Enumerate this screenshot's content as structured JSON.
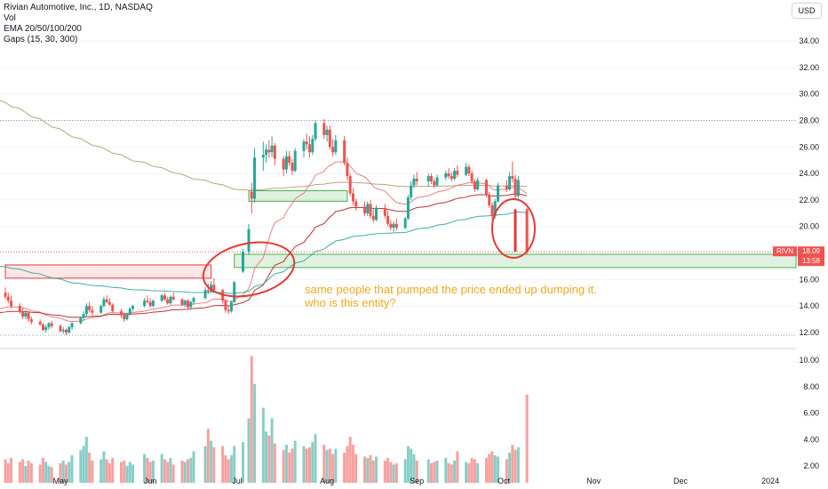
{
  "header": {
    "title": "Rivian Automotive, Inc., 1D, NASDAQ",
    "indicators": [
      "Vol",
      "EMA 20/50/100/200",
      "Gaps (15, 30, 300)"
    ],
    "currency": "USD"
  },
  "annotation": {
    "text": "same people that pumped the price ended up dumping it. who is this entity?",
    "color": "#f2a81d"
  },
  "price_tag": {
    "symbol": "RIVN",
    "last_price": "18.09",
    "countdown": "13:58",
    "color": "#f23645"
  },
  "colors": {
    "up": "#26a69a",
    "down": "#ef5350",
    "ema20": "#e57373",
    "ema50": "#b71c1c",
    "ema100": "#26a69a",
    "ema200": "#b09a6a",
    "gap_up": "#4caf50",
    "gap_down": "#e53935",
    "circle": "#e53935"
  },
  "chart_data": {
    "type": "candlestick",
    "title": "Rivian Automotive, Inc., 1D, NASDAQ",
    "price_axis": {
      "ticks": [
        "34.00",
        "32.00",
        "30.00",
        "28.00",
        "26.00",
        "24.00",
        "22.00",
        "20.00",
        "16.00",
        "14.00",
        "12.00"
      ],
      "range": [
        11.5,
        35.5
      ]
    },
    "volume_axis": {
      "ticks": [
        "10.00",
        "8.00",
        "6.00",
        "4.00",
        "2.00"
      ],
      "unit": "M",
      "range": [
        0,
        11
      ]
    },
    "time_axis": {
      "ticks": [
        "May",
        "Jun",
        "Jul",
        "Aug",
        "Sep",
        "Oct",
        "Nov",
        "Dec",
        "2024"
      ],
      "ticks_date": [
        "2023-05-01",
        "2023-06-01",
        "2023-07-01",
        "2023-08-01",
        "2023-09-01",
        "2023-10-01",
        "2023-11-01",
        "2023-12-01",
        "2024-01-01"
      ]
    },
    "candles": [
      {
        "date": "2023-04-12",
        "o": 15.0,
        "h": 15.4,
        "l": 14.5,
        "c": 14.7,
        "v": 2.5
      },
      {
        "date": "2023-04-13",
        "o": 14.7,
        "h": 15.0,
        "l": 14.2,
        "c": 14.4,
        "v": 2.2
      },
      {
        "date": "2023-04-14",
        "o": 14.4,
        "h": 14.8,
        "l": 13.8,
        "c": 14.0,
        "v": 2.6
      },
      {
        "date": "2023-04-17",
        "o": 14.0,
        "h": 14.2,
        "l": 13.4,
        "c": 13.6,
        "v": 2.3
      },
      {
        "date": "2023-04-18",
        "o": 13.6,
        "h": 13.9,
        "l": 13.0,
        "c": 13.2,
        "v": 2.5
      },
      {
        "date": "2023-04-19",
        "o": 13.2,
        "h": 13.7,
        "l": 13.0,
        "c": 13.5,
        "v": 2.0
      },
      {
        "date": "2023-04-20",
        "o": 13.5,
        "h": 13.6,
        "l": 12.8,
        "c": 13.0,
        "v": 2.4
      },
      {
        "date": "2023-04-21",
        "o": 13.0,
        "h": 13.2,
        "l": 12.6,
        "c": 12.8,
        "v": 2.2
      },
      {
        "date": "2023-04-24",
        "o": 12.8,
        "h": 13.0,
        "l": 12.5,
        "c": 12.6,
        "v": 2.1
      },
      {
        "date": "2023-04-25",
        "o": 12.6,
        "h": 12.7,
        "l": 12.1,
        "c": 12.2,
        "v": 2.6
      },
      {
        "date": "2023-04-26",
        "o": 12.2,
        "h": 12.6,
        "l": 12.0,
        "c": 12.4,
        "v": 2.3
      },
      {
        "date": "2023-04-27",
        "o": 12.4,
        "h": 12.8,
        "l": 12.2,
        "c": 12.7,
        "v": 2.0
      },
      {
        "date": "2023-04-28",
        "o": 12.7,
        "h": 12.9,
        "l": 12.3,
        "c": 12.5,
        "v": 1.9
      },
      {
        "date": "2023-05-01",
        "o": 12.5,
        "h": 12.6,
        "l": 12.0,
        "c": 12.1,
        "v": 2.2
      },
      {
        "date": "2023-05-02",
        "o": 12.1,
        "h": 12.4,
        "l": 11.9,
        "c": 12.2,
        "v": 2.4
      },
      {
        "date": "2023-05-03",
        "o": 12.2,
        "h": 12.3,
        "l": 11.8,
        "c": 12.0,
        "v": 2.1
      },
      {
        "date": "2023-05-04",
        "o": 12.0,
        "h": 12.5,
        "l": 11.9,
        "c": 12.4,
        "v": 2.3
      },
      {
        "date": "2023-05-05",
        "o": 12.4,
        "h": 12.8,
        "l": 12.2,
        "c": 12.7,
        "v": 2.8
      },
      {
        "date": "2023-05-08",
        "o": 12.7,
        "h": 13.2,
        "l": 12.6,
        "c": 13.1,
        "v": 3.2
      },
      {
        "date": "2023-05-09",
        "o": 13.1,
        "h": 13.6,
        "l": 12.9,
        "c": 13.4,
        "v": 3.5
      },
      {
        "date": "2023-05-10",
        "o": 13.4,
        "h": 14.2,
        "l": 13.2,
        "c": 14.0,
        "v": 4.2
      },
      {
        "date": "2023-05-11",
        "o": 14.0,
        "h": 14.3,
        "l": 13.5,
        "c": 13.7,
        "v": 3.0
      },
      {
        "date": "2023-05-12",
        "o": 13.7,
        "h": 14.0,
        "l": 13.3,
        "c": 13.5,
        "v": 2.4
      },
      {
        "date": "2023-05-15",
        "o": 13.5,
        "h": 14.1,
        "l": 13.4,
        "c": 14.0,
        "v": 2.5
      },
      {
        "date": "2023-05-16",
        "o": 14.0,
        "h": 14.7,
        "l": 13.9,
        "c": 14.5,
        "v": 3.1
      },
      {
        "date": "2023-05-17",
        "o": 14.5,
        "h": 14.8,
        "l": 14.2,
        "c": 14.3,
        "v": 2.5
      },
      {
        "date": "2023-05-18",
        "o": 14.3,
        "h": 14.6,
        "l": 14.0,
        "c": 14.1,
        "v": 2.2
      },
      {
        "date": "2023-05-19",
        "o": 14.1,
        "h": 14.2,
        "l": 13.5,
        "c": 13.6,
        "v": 2.6
      },
      {
        "date": "2023-05-22",
        "o": 13.6,
        "h": 13.8,
        "l": 13.1,
        "c": 13.3,
        "v": 2.3
      },
      {
        "date": "2023-05-23",
        "o": 13.3,
        "h": 13.5,
        "l": 12.8,
        "c": 13.0,
        "v": 2.4
      },
      {
        "date": "2023-05-24",
        "o": 13.0,
        "h": 13.5,
        "l": 12.9,
        "c": 13.4,
        "v": 2.0
      },
      {
        "date": "2023-05-25",
        "o": 13.4,
        "h": 13.9,
        "l": 13.3,
        "c": 13.8,
        "v": 2.3
      },
      {
        "date": "2023-05-26",
        "o": 13.8,
        "h": 14.1,
        "l": 13.6,
        "c": 14.0,
        "v": 2.1
      },
      {
        "date": "2023-05-30",
        "o": 14.0,
        "h": 14.6,
        "l": 13.9,
        "c": 14.4,
        "v": 2.9
      },
      {
        "date": "2023-05-31",
        "o": 14.4,
        "h": 14.8,
        "l": 14.2,
        "c": 14.3,
        "v": 2.6
      },
      {
        "date": "2023-06-01",
        "o": 14.3,
        "h": 14.6,
        "l": 13.9,
        "c": 14.0,
        "v": 2.3
      },
      {
        "date": "2023-06-02",
        "o": 14.0,
        "h": 14.5,
        "l": 13.9,
        "c": 14.4,
        "v": 2.4
      },
      {
        "date": "2023-06-05",
        "o": 14.4,
        "h": 14.9,
        "l": 14.3,
        "c": 14.8,
        "v": 2.9
      },
      {
        "date": "2023-06-06",
        "o": 14.8,
        "h": 15.0,
        "l": 14.4,
        "c": 14.5,
        "v": 2.5
      },
      {
        "date": "2023-06-07",
        "o": 14.5,
        "h": 14.7,
        "l": 14.1,
        "c": 14.2,
        "v": 2.3
      },
      {
        "date": "2023-06-08",
        "o": 14.2,
        "h": 14.8,
        "l": 14.1,
        "c": 14.7,
        "v": 2.6
      },
      {
        "date": "2023-06-09",
        "o": 14.7,
        "h": 15.0,
        "l": 14.4,
        "c": 14.5,
        "v": 2.1
      },
      {
        "date": "2023-06-12",
        "o": 14.5,
        "h": 14.6,
        "l": 14.0,
        "c": 14.1,
        "v": 2.4
      },
      {
        "date": "2023-06-13",
        "o": 14.1,
        "h": 14.5,
        "l": 13.9,
        "c": 14.4,
        "v": 2.3
      },
      {
        "date": "2023-06-14",
        "o": 14.4,
        "h": 14.5,
        "l": 13.8,
        "c": 13.9,
        "v": 2.5
      },
      {
        "date": "2023-06-15",
        "o": 13.9,
        "h": 14.4,
        "l": 13.8,
        "c": 14.3,
        "v": 2.6
      },
      {
        "date": "2023-06-16",
        "o": 14.3,
        "h": 14.7,
        "l": 14.1,
        "c": 14.6,
        "v": 3.1
      },
      {
        "date": "2023-06-20",
        "o": 14.6,
        "h": 15.4,
        "l": 14.5,
        "c": 15.2,
        "v": 3.5
      },
      {
        "date": "2023-06-21",
        "o": 15.2,
        "h": 15.7,
        "l": 14.9,
        "c": 15.1,
        "v": 4.8
      },
      {
        "date": "2023-06-22",
        "o": 15.1,
        "h": 15.9,
        "l": 15.0,
        "c": 15.6,
        "v": 3.9
      },
      {
        "date": "2023-06-23",
        "o": 15.6,
        "h": 16.1,
        "l": 15.0,
        "c": 15.2,
        "v": 3.4
      },
      {
        "date": "2023-06-26",
        "o": 15.2,
        "h": 15.3,
        "l": 14.2,
        "c": 14.4,
        "v": 3.5
      },
      {
        "date": "2023-06-27",
        "o": 14.4,
        "h": 14.5,
        "l": 13.5,
        "c": 13.7,
        "v": 2.8
      },
      {
        "date": "2023-06-28",
        "o": 13.7,
        "h": 14.0,
        "l": 13.4,
        "c": 13.6,
        "v": 2.5
      },
      {
        "date": "2023-06-29",
        "o": 13.6,
        "h": 14.4,
        "l": 13.5,
        "c": 14.3,
        "v": 2.8
      },
      {
        "date": "2023-06-30",
        "o": 14.3,
        "h": 15.9,
        "l": 14.2,
        "c": 15.8,
        "v": 3.5
      },
      {
        "date": "2023-07-03",
        "o": 16.6,
        "h": 18.3,
        "l": 16.5,
        "c": 18.1,
        "v": 3.8
      },
      {
        "date": "2023-07-05",
        "o": 18.1,
        "h": 20.2,
        "l": 17.9,
        "c": 19.8,
        "v": 5.6
      },
      {
        "date": "2023-07-06",
        "o": 22.6,
        "h": 23.3,
        "l": 21.0,
        "c": 22.1,
        "v": 10.3
      },
      {
        "date": "2023-07-07",
        "o": 22.1,
        "h": 25.9,
        "l": 21.8,
        "c": 25.2,
        "v": 8.2
      },
      {
        "date": "2023-07-10",
        "o": 25.2,
        "h": 26.4,
        "l": 24.2,
        "c": 25.4,
        "v": 6.4
      },
      {
        "date": "2023-07-11",
        "o": 25.4,
        "h": 26.2,
        "l": 24.8,
        "c": 25.8,
        "v": 4.6
      },
      {
        "date": "2023-07-12",
        "o": 25.8,
        "h": 26.5,
        "l": 25.2,
        "c": 25.6,
        "v": 4.3
      },
      {
        "date": "2023-07-13",
        "o": 25.6,
        "h": 26.8,
        "l": 25.2,
        "c": 26.1,
        "v": 5.6
      },
      {
        "date": "2023-07-14",
        "o": 26.1,
        "h": 26.3,
        "l": 24.6,
        "c": 25.1,
        "v": 3.7
      },
      {
        "date": "2023-07-17",
        "o": 25.1,
        "h": 25.3,
        "l": 23.8,
        "c": 24.3,
        "v": 3.2
      },
      {
        "date": "2023-07-18",
        "o": 24.3,
        "h": 25.7,
        "l": 24.0,
        "c": 25.3,
        "v": 3.6
      },
      {
        "date": "2023-07-19",
        "o": 25.3,
        "h": 25.7,
        "l": 24.6,
        "c": 24.8,
        "v": 3.0
      },
      {
        "date": "2023-07-20",
        "o": 24.8,
        "h": 25.1,
        "l": 23.9,
        "c": 24.2,
        "v": 3.3
      },
      {
        "date": "2023-07-21",
        "o": 24.2,
        "h": 25.9,
        "l": 24.1,
        "c": 25.7,
        "v": 3.9
      },
      {
        "date": "2023-07-24",
        "o": 25.7,
        "h": 26.6,
        "l": 25.2,
        "c": 26.4,
        "v": 3.5
      },
      {
        "date": "2023-07-25",
        "o": 26.4,
        "h": 27.0,
        "l": 25.8,
        "c": 26.2,
        "v": 3.3
      },
      {
        "date": "2023-07-26",
        "o": 26.2,
        "h": 26.8,
        "l": 25.2,
        "c": 25.6,
        "v": 3.4
      },
      {
        "date": "2023-07-27",
        "o": 25.6,
        "h": 26.9,
        "l": 25.4,
        "c": 26.6,
        "v": 3.8
      },
      {
        "date": "2023-07-28",
        "o": 26.6,
        "h": 28.0,
        "l": 26.4,
        "c": 27.8,
        "v": 4.4
      },
      {
        "date": "2023-07-31",
        "o": 27.8,
        "h": 28.1,
        "l": 26.6,
        "c": 26.9,
        "v": 3.6
      },
      {
        "date": "2023-08-01",
        "o": 26.9,
        "h": 27.6,
        "l": 26.4,
        "c": 27.3,
        "v": 3.2
      },
      {
        "date": "2023-08-02",
        "o": 27.3,
        "h": 27.6,
        "l": 25.8,
        "c": 26.0,
        "v": 3.3
      },
      {
        "date": "2023-08-03",
        "o": 26.0,
        "h": 26.6,
        "l": 25.3,
        "c": 25.6,
        "v": 2.9
      },
      {
        "date": "2023-08-04",
        "o": 25.6,
        "h": 26.9,
        "l": 25.4,
        "c": 26.5,
        "v": 3.3
      },
      {
        "date": "2023-08-07",
        "o": 26.5,
        "h": 26.8,
        "l": 24.6,
        "c": 24.8,
        "v": 3.0
      },
      {
        "date": "2023-08-08",
        "o": 24.8,
        "h": 25.2,
        "l": 23.5,
        "c": 23.8,
        "v": 3.5
      },
      {
        "date": "2023-08-09",
        "o": 23.8,
        "h": 24.0,
        "l": 22.3,
        "c": 22.5,
        "v": 4.2
      },
      {
        "date": "2023-08-10",
        "o": 22.5,
        "h": 22.9,
        "l": 21.6,
        "c": 21.9,
        "v": 3.6
      },
      {
        "date": "2023-08-11",
        "o": 21.9,
        "h": 22.1,
        "l": 21.2,
        "c": 21.5,
        "v": 2.9
      },
      {
        "date": "2023-08-14",
        "o": 21.5,
        "h": 21.9,
        "l": 20.8,
        "c": 21.0,
        "v": 2.7
      },
      {
        "date": "2023-08-15",
        "o": 21.0,
        "h": 21.9,
        "l": 20.8,
        "c": 21.7,
        "v": 2.6
      },
      {
        "date": "2023-08-16",
        "o": 21.7,
        "h": 22.0,
        "l": 20.6,
        "c": 20.8,
        "v": 2.8
      },
      {
        "date": "2023-08-17",
        "o": 20.8,
        "h": 21.3,
        "l": 20.3,
        "c": 20.5,
        "v": 2.4
      },
      {
        "date": "2023-08-18",
        "o": 20.5,
        "h": 21.6,
        "l": 20.4,
        "c": 21.4,
        "v": 2.7
      },
      {
        "date": "2023-08-21",
        "o": 21.4,
        "h": 21.7,
        "l": 20.6,
        "c": 20.8,
        "v": 2.4
      },
      {
        "date": "2023-08-22",
        "o": 20.8,
        "h": 21.2,
        "l": 20.0,
        "c": 20.2,
        "v": 2.6
      },
      {
        "date": "2023-08-23",
        "o": 20.2,
        "h": 20.5,
        "l": 19.7,
        "c": 19.9,
        "v": 2.3
      },
      {
        "date": "2023-08-24",
        "o": 19.9,
        "h": 20.4,
        "l": 19.6,
        "c": 20.2,
        "v": 2.1
      },
      {
        "date": "2023-08-25",
        "o": 20.2,
        "h": 20.6,
        "l": 19.7,
        "c": 19.9,
        "v": 2.2
      },
      {
        "date": "2023-08-28",
        "o": 19.9,
        "h": 20.7,
        "l": 19.8,
        "c": 20.6,
        "v": 2.5
      },
      {
        "date": "2023-08-29",
        "o": 20.6,
        "h": 22.4,
        "l": 20.5,
        "c": 22.2,
        "v": 3.5
      },
      {
        "date": "2023-08-30",
        "o": 22.2,
        "h": 23.4,
        "l": 22.0,
        "c": 23.1,
        "v": 3.3
      },
      {
        "date": "2023-08-31",
        "o": 23.1,
        "h": 23.9,
        "l": 22.9,
        "c": 23.6,
        "v": 2.9
      },
      {
        "date": "2023-09-01",
        "o": 23.6,
        "h": 24.1,
        "l": 23.1,
        "c": 23.4,
        "v": 2.4
      },
      {
        "date": "2023-09-05",
        "o": 23.4,
        "h": 24.0,
        "l": 23.0,
        "c": 23.8,
        "v": 2.5
      },
      {
        "date": "2023-09-06",
        "o": 23.8,
        "h": 24.0,
        "l": 23.2,
        "c": 23.4,
        "v": 2.2
      },
      {
        "date": "2023-09-07",
        "o": 23.4,
        "h": 23.6,
        "l": 22.9,
        "c": 23.1,
        "v": 2.3
      },
      {
        "date": "2023-09-08",
        "o": 23.1,
        "h": 23.9,
        "l": 23.0,
        "c": 23.7,
        "v": 2.4
      },
      {
        "date": "2023-09-11",
        "o": 23.7,
        "h": 24.2,
        "l": 23.5,
        "c": 24.0,
        "v": 2.6
      },
      {
        "date": "2023-09-12",
        "o": 24.0,
        "h": 24.4,
        "l": 23.6,
        "c": 23.8,
        "v": 2.2
      },
      {
        "date": "2023-09-13",
        "o": 23.8,
        "h": 24.1,
        "l": 23.4,
        "c": 23.6,
        "v": 2.1
      },
      {
        "date": "2023-09-14",
        "o": 23.6,
        "h": 24.4,
        "l": 23.5,
        "c": 24.2,
        "v": 2.4
      },
      {
        "date": "2023-09-15",
        "o": 24.2,
        "h": 24.6,
        "l": 23.7,
        "c": 23.9,
        "v": 3.1
      },
      {
        "date": "2023-09-18",
        "o": 23.9,
        "h": 24.8,
        "l": 23.8,
        "c": 24.5,
        "v": 2.3
      },
      {
        "date": "2023-09-19",
        "o": 24.5,
        "h": 24.7,
        "l": 23.8,
        "c": 24.0,
        "v": 2.2
      },
      {
        "date": "2023-09-20",
        "o": 24.0,
        "h": 24.2,
        "l": 23.2,
        "c": 23.4,
        "v": 2.6
      },
      {
        "date": "2023-09-21",
        "o": 23.4,
        "h": 23.6,
        "l": 22.6,
        "c": 22.8,
        "v": 2.5
      },
      {
        "date": "2023-09-22",
        "o": 22.8,
        "h": 23.7,
        "l": 22.7,
        "c": 23.5,
        "v": 2.2
      },
      {
        "date": "2023-09-25",
        "o": 23.5,
        "h": 23.6,
        "l": 22.2,
        "c": 22.4,
        "v": 2.6
      },
      {
        "date": "2023-09-26",
        "o": 22.4,
        "h": 22.6,
        "l": 21.4,
        "c": 21.6,
        "v": 2.9
      },
      {
        "date": "2023-09-27",
        "o": 21.6,
        "h": 21.8,
        "l": 20.5,
        "c": 20.8,
        "v": 3.1
      },
      {
        "date": "2023-09-28",
        "o": 20.8,
        "h": 22.1,
        "l": 20.6,
        "c": 21.9,
        "v": 2.8
      },
      {
        "date": "2023-09-29",
        "o": 21.9,
        "h": 23.3,
        "l": 21.8,
        "c": 23.1,
        "v": 2.7
      },
      {
        "date": "2023-10-02",
        "o": 23.1,
        "h": 23.5,
        "l": 22.6,
        "c": 22.8,
        "v": 2.5
      },
      {
        "date": "2023-10-03",
        "o": 22.8,
        "h": 24.1,
        "l": 22.7,
        "c": 23.8,
        "v": 3.0
      },
      {
        "date": "2023-10-04",
        "o": 23.8,
        "h": 24.9,
        "l": 23.3,
        "c": 23.6,
        "v": 3.6
      },
      {
        "date": "2023-10-05",
        "o": 23.6,
        "h": 23.9,
        "l": 22.0,
        "c": 22.3,
        "v": 3.2
      },
      {
        "date": "2023-10-06",
        "o": 22.3,
        "h": 23.8,
        "l": 22.1,
        "c": 23.5,
        "v": 3.4
      },
      {
        "date": "2023-10-09",
        "o": 21.3,
        "h": 21.4,
        "l": 17.9,
        "c": 18.09,
        "v": 7.4
      }
    ],
    "ema_lines": [
      {
        "name": "EMA 20",
        "period": 20
      },
      {
        "name": "EMA 50",
        "period": 50
      },
      {
        "name": "EMA 100",
        "period": 100
      },
      {
        "name": "EMA 200",
        "period": 200
      }
    ],
    "gap_zones": [
      {
        "direction": "down",
        "from": "2023-04-12",
        "to": "2023-06-22",
        "low": 16.1,
        "high": 17.1
      },
      {
        "direction": "up",
        "from": "2023-07-05",
        "to": "2023-08-08",
        "low": 21.9,
        "high": 22.7
      },
      {
        "direction": "up",
        "from": "2023-06-30",
        "to": "2024-01-10",
        "low": 16.9,
        "high": 17.9
      }
    ],
    "last_price": 18.09
  }
}
